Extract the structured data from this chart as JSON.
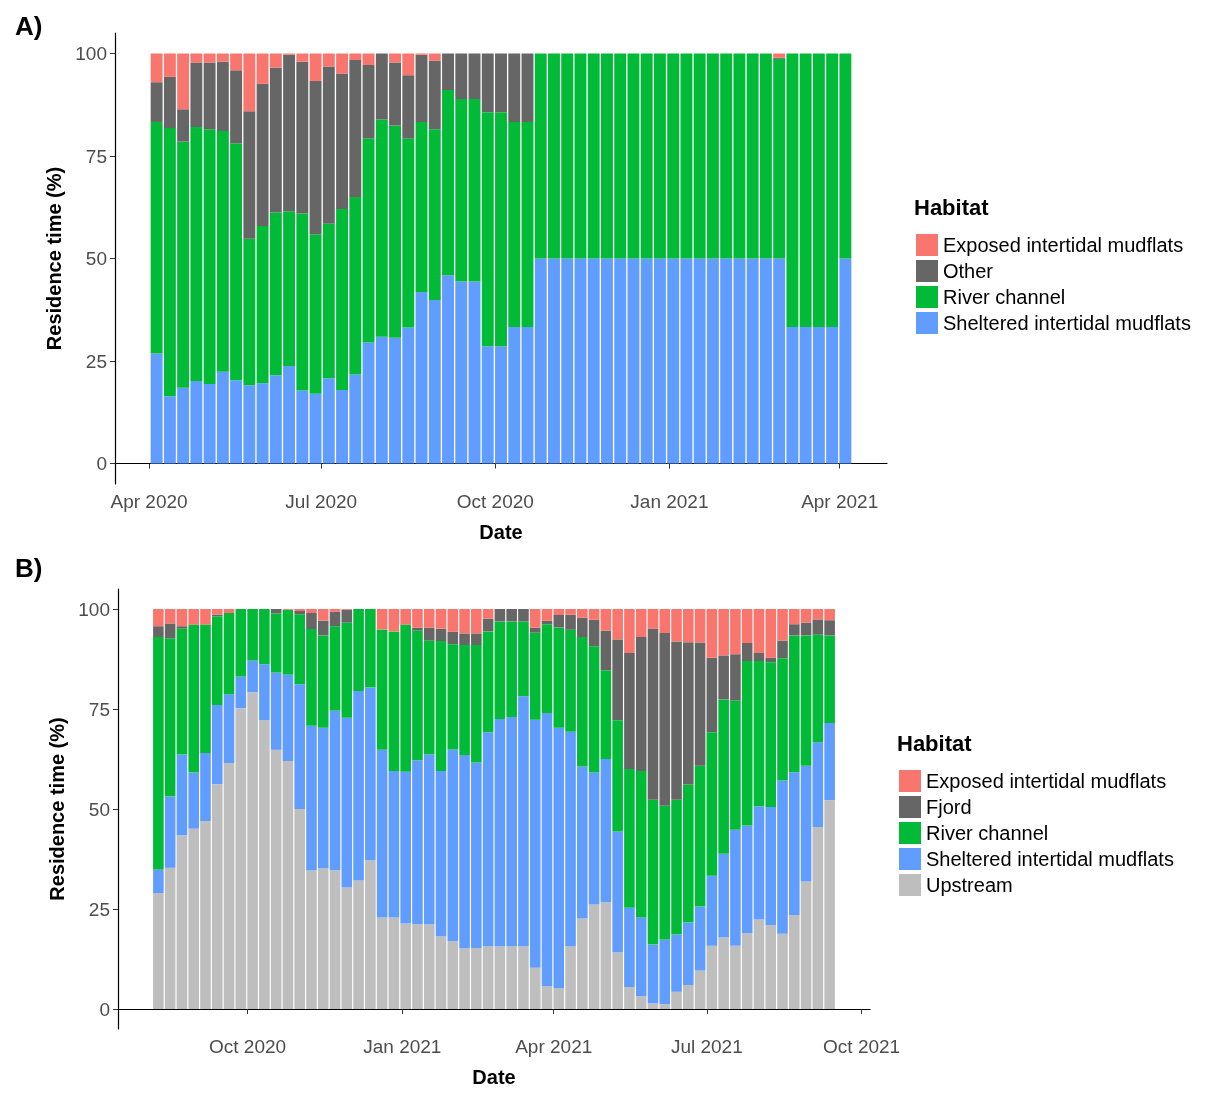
{
  "chart_data": [
    {
      "type": "bar",
      "title": "A)",
      "xlabel": "Date",
      "ylabel": "Residence time (%)",
      "legend_title": "Habitat",
      "stacked": true,
      "legend": "right",
      "grid": false,
      "x": [
        "2020-04-05",
        "2020-04-12",
        "2020-04-19",
        "2020-04-26",
        "2020-05-03",
        "2020-05-10",
        "2020-05-17",
        "2020-05-24",
        "2020-05-31",
        "2020-06-07",
        "2020-06-14",
        "2020-06-21",
        "2020-06-28",
        "2020-07-05",
        "2020-07-12",
        "2020-07-19",
        "2020-07-26",
        "2020-08-02",
        "2020-08-09",
        "2020-08-16",
        "2020-08-23",
        "2020-08-30",
        "2020-09-06",
        "2020-09-13",
        "2020-09-20",
        "2020-09-27",
        "2020-10-04",
        "2020-10-11",
        "2020-10-18",
        "2020-10-25",
        "2020-11-01",
        "2020-11-08",
        "2020-11-15",
        "2020-11-22",
        "2020-11-29",
        "2020-12-06",
        "2020-12-13",
        "2020-12-20",
        "2020-12-27",
        "2021-01-03",
        "2021-01-10",
        "2021-01-17",
        "2021-01-24",
        "2021-01-31",
        "2021-02-07",
        "2021-02-14",
        "2021-02-21",
        "2021-02-28",
        "2021-03-07",
        "2021-03-14",
        "2021-03-21",
        "2021-03-28",
        "2021-04-04"
      ],
      "xlim": [
        "2020-03-14",
        "2021-04-26"
      ],
      "xticks": [
        {
          "value": "2020-04-01",
          "label": "Apr 2020"
        },
        {
          "value": "2020-07-01",
          "label": "Jul 2020"
        },
        {
          "value": "2020-10-01",
          "label": "Oct 2020"
        },
        {
          "value": "2021-01-01",
          "label": "Jan 2021"
        },
        {
          "value": "2021-04-01",
          "label": "Apr 2021"
        }
      ],
      "ylim": [
        -5,
        105
      ],
      "yticks": [
        0,
        25,
        50,
        75,
        100
      ],
      "series": [
        {
          "name": "Sheltered intertidal mudflats",
          "color": "#619cff",
          "values": [
            26.8,
            16.4,
            18.5,
            20.1,
            19.4,
            22.4,
            20.3,
            19.1,
            19.6,
            21.5,
            23.8,
            17.8,
            17.0,
            20.8,
            17.9,
            21.7,
            29.5,
            30.9,
            30.7,
            33.2,
            41.8,
            39.9,
            45.9,
            44.4,
            44.4,
            28.6,
            28.6,
            33.3,
            33.3,
            50,
            50,
            50,
            50,
            50,
            50,
            50,
            50,
            50,
            50,
            50,
            50,
            50,
            50,
            50,
            50,
            50,
            50,
            50,
            33.3,
            33.3,
            33.3,
            33.3,
            50
          ]
        },
        {
          "name": "River channel",
          "color": "#00ba38",
          "values": [
            56.5,
            65.4,
            60.0,
            62.0,
            62.1,
            58.7,
            57.8,
            35.7,
            38.3,
            39.7,
            37.7,
            43.2,
            38.9,
            37.7,
            44.2,
            43.3,
            49.8,
            53.0,
            51.7,
            46.1,
            41.5,
            41.6,
            45.2,
            44.5,
            44.5,
            57.1,
            57.1,
            50.0,
            50.0,
            50,
            50,
            50,
            50,
            50,
            50,
            50,
            50,
            50,
            50,
            50,
            50,
            50,
            50,
            50,
            50,
            50,
            50,
            48.7,
            66.7,
            66.7,
            66.7,
            66.7,
            50
          ]
        },
        {
          "name": "Other",
          "color": "#666666",
          "values": [
            9.7,
            12.5,
            7.9,
            15.7,
            16.3,
            16.9,
            17.8,
            31.1,
            34.7,
            35.4,
            38.2,
            37.0,
            37.4,
            38.3,
            33.0,
            33.4,
            17.9,
            16.1,
            15.4,
            15.4,
            16.4,
            16.7,
            8.9,
            11.1,
            11.1,
            14.3,
            14.3,
            16.7,
            16.7,
            0,
            0,
            0,
            0,
            0,
            0,
            0,
            0,
            0,
            0,
            0,
            0,
            0,
            0,
            0,
            0,
            0,
            0,
            0.3,
            0,
            0,
            0,
            0,
            0
          ]
        },
        {
          "name": "Exposed intertidal mudflats",
          "color": "#f8766d",
          "values": [
            7.0,
            5.7,
            13.6,
            2.2,
            2.2,
            2.0,
            4.1,
            14.1,
            7.4,
            3.4,
            0.3,
            2.0,
            6.7,
            3.2,
            4.9,
            1.6,
            2.8,
            0,
            2.2,
            5.3,
            0.3,
            1.8,
            0,
            0,
            0,
            0,
            0,
            0,
            0,
            0,
            0,
            0,
            0,
            0,
            0,
            0,
            0,
            0,
            0,
            0,
            0,
            0,
            0,
            0,
            0,
            0,
            0,
            1.0,
            0,
            0,
            0,
            0,
            0
          ]
        }
      ]
    },
    {
      "type": "bar",
      "title": "B)",
      "xlabel": "Date",
      "ylabel": "Residence time (%)",
      "legend_title": "Habitat",
      "stacked": true,
      "legend": "right",
      "grid": false,
      "x": [
        "2020-08-09",
        "2020-08-16",
        "2020-08-23",
        "2020-08-30",
        "2020-09-06",
        "2020-09-13",
        "2020-09-20",
        "2020-09-27",
        "2020-10-04",
        "2020-10-11",
        "2020-10-18",
        "2020-10-25",
        "2020-11-01",
        "2020-11-08",
        "2020-11-15",
        "2020-11-22",
        "2020-11-29",
        "2020-12-06",
        "2020-12-13",
        "2020-12-20",
        "2020-12-27",
        "2021-01-03",
        "2021-01-10",
        "2021-01-17",
        "2021-01-24",
        "2021-01-31",
        "2021-02-07",
        "2021-02-14",
        "2021-02-21",
        "2021-02-28",
        "2021-03-07",
        "2021-03-14",
        "2021-03-21",
        "2021-03-28",
        "2021-04-04",
        "2021-04-11",
        "2021-04-18",
        "2021-04-25",
        "2021-05-02",
        "2021-05-09",
        "2021-05-16",
        "2021-05-23",
        "2021-05-30",
        "2021-06-06",
        "2021-06-13",
        "2021-06-20",
        "2021-06-27",
        "2021-07-04",
        "2021-07-11",
        "2021-07-18",
        "2021-07-25",
        "2021-08-01",
        "2021-08-08",
        "2021-08-15",
        "2021-08-22",
        "2021-08-29",
        "2021-09-05",
        "2021-09-12"
      ],
      "xlim": [
        "2020-07-16",
        "2021-10-06"
      ],
      "xticks": [
        {
          "value": "2020-10-01",
          "label": "Oct 2020"
        },
        {
          "value": "2021-01-01",
          "label": "Jan 2021"
        },
        {
          "value": "2021-04-01",
          "label": "Apr 2021"
        },
        {
          "value": "2021-07-01",
          "label": "Jul 2021"
        },
        {
          "value": "2021-10-01",
          "label": "Oct 2021"
        }
      ],
      "ylim": [
        -5,
        105
      ],
      "yticks": [
        0,
        25,
        50,
        75,
        100
      ],
      "series": [
        {
          "name": "Upstream",
          "color": "#bebebe",
          "values": [
            29.0,
            35.3,
            43.4,
            45.1,
            47.0,
            56.2,
            61.5,
            75.2,
            79.2,
            72.2,
            64.8,
            62.0,
            50.0,
            34.6,
            35.2,
            34.7,
            30.4,
            32.1,
            37.2,
            22.9,
            22.9,
            21.4,
            21.2,
            21.2,
            18.2,
            17.0,
            15.2,
            15.2,
            15.7,
            15.7,
            15.7,
            15.7,
            10.3,
            5.7,
            5.2,
            15.7,
            22.6,
            26.1,
            26.7,
            14.1,
            5.5,
            3.2,
            1.4,
            1.2,
            4.3,
            6.0,
            9.6,
            15.8,
            17.9,
            15.8,
            19.0,
            22.4,
            21.0,
            18.8,
            23.5,
            31.9,
            45.5,
            52.2
          ]
        },
        {
          "name": "Sheltered intertidal mudflats",
          "color": "#619cff",
          "values": [
            5.9,
            17.8,
            20.2,
            14.0,
            17.0,
            19.8,
            17.2,
            7.9,
            7.9,
            14.0,
            19.3,
            21.6,
            31.2,
            36.2,
            35.1,
            39.9,
            42.4,
            47.4,
            43.2,
            41.9,
            36.6,
            37.9,
            41.0,
            42.5,
            41.3,
            47.9,
            48.3,
            46.4,
            53.5,
            56.8,
            57.3,
            62.5,
            62.0,
            68.3,
            65.1,
            53.6,
            38.0,
            33.0,
            35.8,
            30.3,
            19.8,
            19.7,
            14.7,
            16.2,
            14.3,
            15.6,
            16.0,
            17.5,
            20.9,
            29.0,
            26.9,
            28.3,
            29.5,
            38.3,
            35.7,
            28.9,
            21.2,
            19.3
          ]
        },
        {
          "name": "River channel",
          "color": "#00ba38",
          "values": [
            58.1,
            39.6,
            31.5,
            37.0,
            32.1,
            22.2,
            20.3,
            16.9,
            12.9,
            13.8,
            14.8,
            16.2,
            17.5,
            24.2,
            23.1,
            21.1,
            23.8,
            20.5,
            19.6,
            30.1,
            34.9,
            36.8,
            32.4,
            28.4,
            32.5,
            26.3,
            27.5,
            29.4,
            25.2,
            24.4,
            23.9,
            18.7,
            21.8,
            22.2,
            25.1,
            25.5,
            32.4,
            31.6,
            22.2,
            27.8,
            34.7,
            36.6,
            36.2,
            33.4,
            33.7,
            34.5,
            35.2,
            35.9,
            38.6,
            32.3,
            41.1,
            36.3,
            36.2,
            30.6,
            34.2,
            32.6,
            26.9,
            21.9
          ]
        },
        {
          "name": "Fjord",
          "color": "#666666",
          "values": [
            2.7,
            3.7,
            0.6,
            0,
            0,
            0.4,
            0,
            0,
            0,
            0,
            1.1,
            0,
            0.8,
            4.0,
            3.7,
            3.6,
            3.2,
            0,
            0,
            0,
            0,
            0,
            0.7,
            3.2,
            3.1,
            3.1,
            2.9,
            2.9,
            3.2,
            3.1,
            3.1,
            3.1,
            1.2,
            0.9,
            3.1,
            3.8,
            4.8,
            6.6,
            9.9,
            20.2,
            29.0,
            33.5,
            42.8,
            43.2,
            39.6,
            35.6,
            30.8,
            18.6,
            11.0,
            11.6,
            4.5,
            2.0,
            1.1,
            4.4,
            2.8,
            3.2,
            3.8,
            3.8
          ]
        },
        {
          "name": "Exposed intertidal mudflats",
          "color": "#f8766d",
          "values": [
            4.3,
            3.6,
            4.3,
            3.9,
            3.9,
            1.4,
            1.0,
            0,
            0,
            0,
            0,
            0.2,
            0.5,
            1.0,
            2.9,
            0.7,
            0.2,
            0,
            0,
            5.1,
            5.6,
            3.9,
            4.7,
            4.7,
            4.9,
            5.7,
            6.1,
            6.1,
            2.4,
            0,
            0,
            0,
            4.7,
            2.9,
            1.5,
            1.4,
            2.2,
            2.7,
            5.4,
            7.6,
            11.0,
            7.0,
            4.9,
            6.0,
            8.1,
            8.3,
            8.4,
            12.2,
            11.6,
            11.3,
            8.5,
            11.0,
            12.2,
            7.9,
            3.8,
            3.4,
            2.6,
            2.8
          ]
        }
      ]
    }
  ]
}
